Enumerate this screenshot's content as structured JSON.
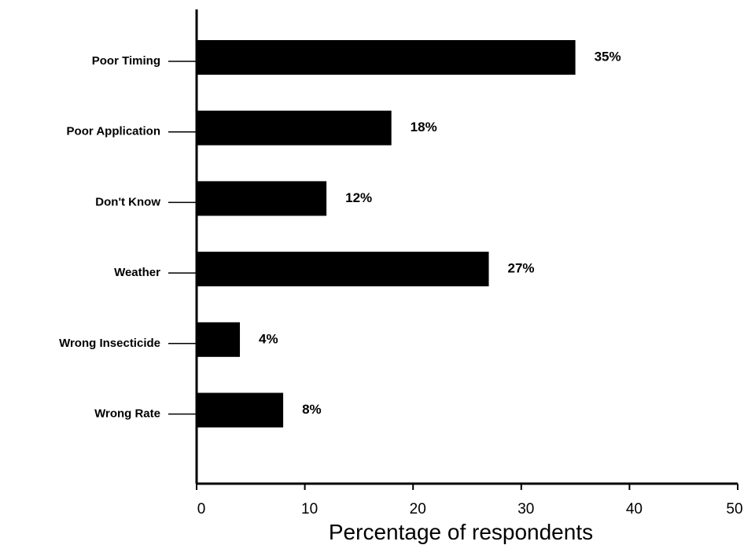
{
  "chart_data": {
    "type": "bar",
    "orientation": "horizontal",
    "categories": [
      "Poor Timing",
      "Poor Application",
      "Don't Know",
      "Weather",
      "Wrong Insecticide",
      "Wrong Rate"
    ],
    "values": [
      35,
      18,
      12,
      27,
      4,
      8
    ],
    "value_labels": [
      "35%",
      "18%",
      "12%",
      "27%",
      "4%",
      "8%"
    ],
    "xlabel": "Percentage of respondents",
    "ylabel": "",
    "xlim": [
      0,
      50
    ],
    "xticks": [
      "0",
      "10",
      "20",
      "30",
      "40",
      "50"
    ],
    "grid": false,
    "bar_color": "#000000"
  }
}
